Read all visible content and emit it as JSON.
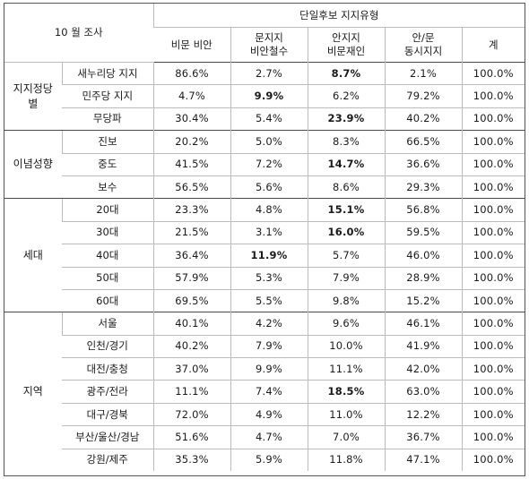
{
  "table": {
    "corner_label": "10 월 조사",
    "group_header": "단일후보 지지유형",
    "columns": [
      {
        "line1": "비문 비안",
        "line2": ""
      },
      {
        "line1": "문지지",
        "line2": "비안철수"
      },
      {
        "line1": "안지지",
        "line2": "비문재인"
      },
      {
        "line1": "안/문",
        "line2": "동시지지"
      },
      {
        "line1": "계",
        "line2": ""
      }
    ],
    "groups": [
      {
        "label_line1": "지지정당",
        "label_line2": "별",
        "rows": [
          {
            "label": "새누리당 지지",
            "values": [
              "86.6%",
              "2.7%",
              "8.7%",
              "2.1%",
              "100.0%"
            ],
            "bold": [
              false,
              false,
              true,
              false,
              false
            ]
          },
          {
            "label": "민주당 지지",
            "values": [
              "4.7%",
              "9.9%",
              "6.2%",
              "79.2%",
              "100.0%"
            ],
            "bold": [
              false,
              true,
              false,
              false,
              false
            ]
          },
          {
            "label": "무당파",
            "values": [
              "30.4%",
              "5.4%",
              "23.9%",
              "40.2%",
              "100.0%"
            ],
            "bold": [
              false,
              false,
              true,
              false,
              false
            ]
          }
        ]
      },
      {
        "label_line1": "이념성향",
        "label_line2": "",
        "rows": [
          {
            "label": "진보",
            "values": [
              "20.2%",
              "5.0%",
              "8.3%",
              "66.5%",
              "100.0%"
            ],
            "bold": [
              false,
              false,
              false,
              false,
              false
            ]
          },
          {
            "label": "중도",
            "values": [
              "41.5%",
              "7.2%",
              "14.7%",
              "36.6%",
              "100.0%"
            ],
            "bold": [
              false,
              false,
              true,
              false,
              false
            ]
          },
          {
            "label": "보수",
            "values": [
              "56.5%",
              "5.6%",
              "8.6%",
              "29.3%",
              "100.0%"
            ],
            "bold": [
              false,
              false,
              false,
              false,
              false
            ]
          }
        ]
      },
      {
        "label_line1": "세대",
        "label_line2": "",
        "rows": [
          {
            "label": "20대",
            "values": [
              "23.3%",
              "4.8%",
              "15.1%",
              "56.8%",
              "100.0%"
            ],
            "bold": [
              false,
              false,
              true,
              false,
              false
            ]
          },
          {
            "label": "30대",
            "values": [
              "21.5%",
              "3.1%",
              "16.0%",
              "59.5%",
              "100.0%"
            ],
            "bold": [
              false,
              false,
              true,
              false,
              false
            ]
          },
          {
            "label": "40대",
            "values": [
              "36.4%",
              "11.9%",
              "5.7%",
              "46.0%",
              "100.0%"
            ],
            "bold": [
              false,
              true,
              false,
              false,
              false
            ]
          },
          {
            "label": "50대",
            "values": [
              "57.9%",
              "5.3%",
              "7.9%",
              "28.9%",
              "100.0%"
            ],
            "bold": [
              false,
              false,
              false,
              false,
              false
            ]
          },
          {
            "label": "60대",
            "values": [
              "69.5%",
              "5.5%",
              "9.8%",
              "15.2%",
              "100.0%"
            ],
            "bold": [
              false,
              false,
              false,
              false,
              false
            ]
          }
        ]
      },
      {
        "label_line1": "지역",
        "label_line2": "",
        "rows": [
          {
            "label": "서울",
            "values": [
              "40.1%",
              "4.2%",
              "9.6%",
              "46.1%",
              "100.0%"
            ],
            "bold": [
              false,
              false,
              false,
              false,
              false
            ]
          },
          {
            "label": "인천/경기",
            "values": [
              "40.2%",
              "7.9%",
              "10.0%",
              "41.9%",
              "100.0%"
            ],
            "bold": [
              false,
              false,
              false,
              false,
              false
            ]
          },
          {
            "label": "대전/충청",
            "values": [
              "37.0%",
              "9.9%",
              "11.1%",
              "42.0%",
              "100.0%"
            ],
            "bold": [
              false,
              false,
              false,
              false,
              false
            ]
          },
          {
            "label": "광주/전라",
            "values": [
              "11.1%",
              "7.4%",
              "18.5%",
              "63.0%",
              "100.0%"
            ],
            "bold": [
              false,
              false,
              true,
              false,
              false
            ]
          },
          {
            "label": "대구/경북",
            "values": [
              "72.0%",
              "4.9%",
              "11.0%",
              "12.2%",
              "100.0%"
            ],
            "bold": [
              false,
              false,
              false,
              false,
              false
            ]
          },
          {
            "label": "부산/울산/경남",
            "values": [
              "51.6%",
              "4.7%",
              "7.0%",
              "36.7%",
              "100.0%"
            ],
            "bold": [
              false,
              false,
              false,
              false,
              false
            ]
          },
          {
            "label": "강원/제주",
            "values": [
              "35.3%",
              "5.9%",
              "11.8%",
              "47.1%",
              "100.0%"
            ],
            "bold": [
              false,
              false,
              false,
              false,
              false
            ]
          }
        ]
      }
    ]
  }
}
